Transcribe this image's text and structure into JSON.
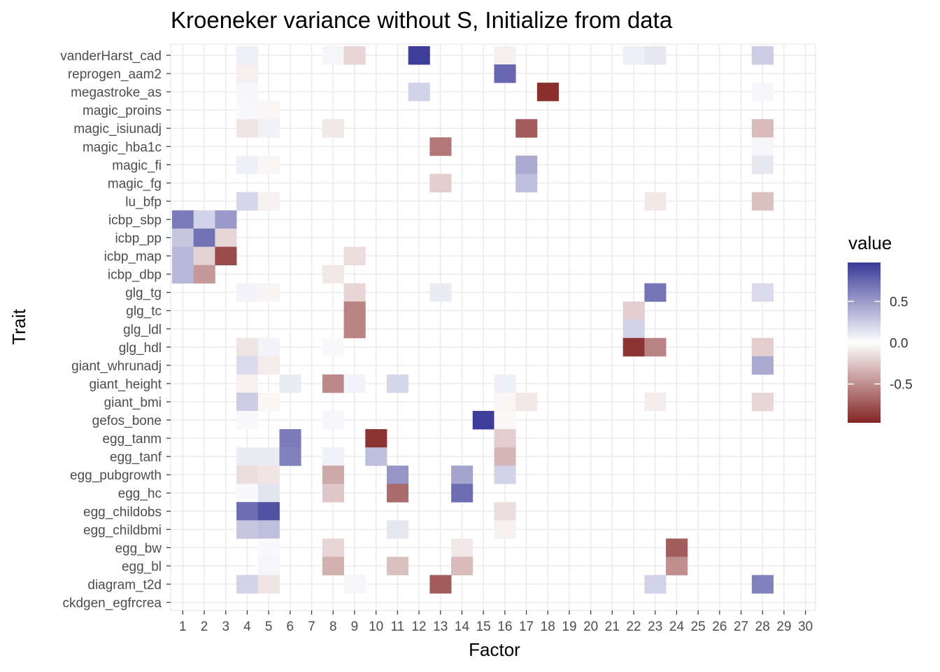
{
  "chart_data": {
    "type": "heatmap",
    "title": "Kroeneker variance without S, Initialize from data",
    "xlabel": "Factor",
    "ylabel": "Trait",
    "x_categories": [
      "1",
      "2",
      "3",
      "4",
      "5",
      "6",
      "7",
      "8",
      "9",
      "10",
      "11",
      "12",
      "13",
      "14",
      "15",
      "16",
      "17",
      "18",
      "19",
      "20",
      "21",
      "22",
      "23",
      "24",
      "25",
      "26",
      "27",
      "28",
      "29",
      "30"
    ],
    "y_categories": [
      "vanderHarst_cad",
      "reprogen_aam2",
      "megastroke_as",
      "magic_proins",
      "magic_isiunadj",
      "magic_hba1c",
      "magic_fi",
      "magic_fg",
      "lu_bfp",
      "icbp_sbp",
      "icbp_pp",
      "icbp_map",
      "icbp_dbp",
      "glg_tg",
      "glg_tc",
      "glg_ldl",
      "glg_hdl",
      "giant_whrunadj",
      "giant_height",
      "giant_bmi",
      "gefos_bone",
      "egg_tanm",
      "egg_tanf",
      "egg_pubgrowth",
      "egg_hc",
      "egg_childobs",
      "egg_childbmi",
      "egg_bw",
      "egg_bl",
      "diagram_t2d",
      "ckdgen_egfrcrea"
    ],
    "cells": [
      {
        "trait": "vanderHarst_cad",
        "factor": 4,
        "value": 0.08
      },
      {
        "trait": "vanderHarst_cad",
        "factor": 8,
        "value": 0.05
      },
      {
        "trait": "vanderHarst_cad",
        "factor": 9,
        "value": -0.18
      },
      {
        "trait": "vanderHarst_cad",
        "factor": 12,
        "value": 0.95
      },
      {
        "trait": "vanderHarst_cad",
        "factor": 16,
        "value": -0.07
      },
      {
        "trait": "vanderHarst_cad",
        "factor": 22,
        "value": 0.08
      },
      {
        "trait": "vanderHarst_cad",
        "factor": 23,
        "value": 0.12
      },
      {
        "trait": "vanderHarst_cad",
        "factor": 28,
        "value": 0.25
      },
      {
        "trait": "reprogen_aam2",
        "factor": 4,
        "value": -0.07
      },
      {
        "trait": "reprogen_aam2",
        "factor": 16,
        "value": 0.75
      },
      {
        "trait": "megastroke_as",
        "factor": 4,
        "value": 0.04
      },
      {
        "trait": "megastroke_as",
        "factor": 12,
        "value": 0.22
      },
      {
        "trait": "megastroke_as",
        "factor": 18,
        "value": -0.92
      },
      {
        "trait": "megastroke_as",
        "factor": 28,
        "value": 0.04
      },
      {
        "trait": "magic_proins",
        "factor": 4,
        "value": 0.03
      },
      {
        "trait": "magic_proins",
        "factor": 5,
        "value": -0.04
      },
      {
        "trait": "magic_isiunadj",
        "factor": 4,
        "value": -0.12
      },
      {
        "trait": "magic_isiunadj",
        "factor": 5,
        "value": 0.07
      },
      {
        "trait": "magic_isiunadj",
        "factor": 8,
        "value": -0.1
      },
      {
        "trait": "magic_isiunadj",
        "factor": 17,
        "value": -0.72
      },
      {
        "trait": "magic_isiunadj",
        "factor": 28,
        "value": -0.3
      },
      {
        "trait": "magic_hba1c",
        "factor": 13,
        "value": -0.6
      },
      {
        "trait": "magic_hba1c",
        "factor": 28,
        "value": 0.05
      },
      {
        "trait": "magic_fi",
        "factor": 4,
        "value": 0.08
      },
      {
        "trait": "magic_fi",
        "factor": 5,
        "value": -0.04
      },
      {
        "trait": "magic_fi",
        "factor": 17,
        "value": 0.42
      },
      {
        "trait": "magic_fi",
        "factor": 28,
        "value": 0.12
      },
      {
        "trait": "magic_fg",
        "factor": 13,
        "value": -0.22
      },
      {
        "trait": "magic_fg",
        "factor": 17,
        "value": 0.32
      },
      {
        "trait": "lu_bfp",
        "factor": 4,
        "value": 0.2
      },
      {
        "trait": "lu_bfp",
        "factor": 5,
        "value": -0.06
      },
      {
        "trait": "lu_bfp",
        "factor": 23,
        "value": -0.1
      },
      {
        "trait": "lu_bfp",
        "factor": 28,
        "value": -0.28
      },
      {
        "trait": "icbp_sbp",
        "factor": 1,
        "value": 0.65
      },
      {
        "trait": "icbp_sbp",
        "factor": 2,
        "value": 0.22
      },
      {
        "trait": "icbp_sbp",
        "factor": 3,
        "value": 0.5
      },
      {
        "trait": "icbp_pp",
        "factor": 1,
        "value": 0.28
      },
      {
        "trait": "icbp_pp",
        "factor": 2,
        "value": 0.7
      },
      {
        "trait": "icbp_pp",
        "factor": 3,
        "value": -0.18
      },
      {
        "trait": "icbp_map",
        "factor": 1,
        "value": 0.35
      },
      {
        "trait": "icbp_map",
        "factor": 2,
        "value": -0.2
      },
      {
        "trait": "icbp_map",
        "factor": 3,
        "value": -0.8
      },
      {
        "trait": "icbp_map",
        "factor": 9,
        "value": -0.15
      },
      {
        "trait": "icbp_dbp",
        "factor": 1,
        "value": 0.35
      },
      {
        "trait": "icbp_dbp",
        "factor": 2,
        "value": -0.45
      },
      {
        "trait": "icbp_dbp",
        "factor": 8,
        "value": -0.1
      },
      {
        "trait": "glg_tg",
        "factor": 4,
        "value": 0.06
      },
      {
        "trait": "glg_tg",
        "factor": 5,
        "value": -0.05
      },
      {
        "trait": "glg_tg",
        "factor": 9,
        "value": -0.18
      },
      {
        "trait": "glg_tg",
        "factor": 13,
        "value": 0.1
      },
      {
        "trait": "glg_tg",
        "factor": 23,
        "value": 0.68
      },
      {
        "trait": "glg_tg",
        "factor": 28,
        "value": 0.18
      },
      {
        "trait": "glg_tc",
        "factor": 9,
        "value": -0.55
      },
      {
        "trait": "glg_tc",
        "factor": 22,
        "value": -0.22
      },
      {
        "trait": "glg_ldl",
        "factor": 9,
        "value": -0.55
      },
      {
        "trait": "glg_ldl",
        "factor": 22,
        "value": 0.22
      },
      {
        "trait": "glg_hdl",
        "factor": 4,
        "value": -0.12
      },
      {
        "trait": "glg_hdl",
        "factor": 5,
        "value": 0.06
      },
      {
        "trait": "glg_hdl",
        "factor": 8,
        "value": 0.03
      },
      {
        "trait": "glg_hdl",
        "factor": 22,
        "value": -0.9
      },
      {
        "trait": "glg_hdl",
        "factor": 23,
        "value": -0.55
      },
      {
        "trait": "glg_hdl",
        "factor": 28,
        "value": -0.22
      },
      {
        "trait": "giant_whrunadj",
        "factor": 4,
        "value": 0.18
      },
      {
        "trait": "giant_whrunadj",
        "factor": 5,
        "value": -0.08
      },
      {
        "trait": "giant_whrunadj",
        "factor": 28,
        "value": 0.42
      },
      {
        "trait": "giant_height",
        "factor": 4,
        "value": -0.06
      },
      {
        "trait": "giant_height",
        "factor": 6,
        "value": 0.1
      },
      {
        "trait": "giant_height",
        "factor": 8,
        "value": -0.52
      },
      {
        "trait": "giant_height",
        "factor": 9,
        "value": 0.06
      },
      {
        "trait": "giant_height",
        "factor": 11,
        "value": 0.2
      },
      {
        "trait": "giant_height",
        "factor": 16,
        "value": 0.08
      },
      {
        "trait": "giant_bmi",
        "factor": 4,
        "value": 0.25
      },
      {
        "trait": "giant_bmi",
        "factor": 5,
        "value": -0.04
      },
      {
        "trait": "giant_bmi",
        "factor": 16,
        "value": -0.04
      },
      {
        "trait": "giant_bmi",
        "factor": 17,
        "value": -0.1
      },
      {
        "trait": "giant_bmi",
        "factor": 23,
        "value": -0.08
      },
      {
        "trait": "giant_bmi",
        "factor": 28,
        "value": -0.18
      },
      {
        "trait": "gefos_bone",
        "factor": 4,
        "value": 0.03
      },
      {
        "trait": "gefos_bone",
        "factor": 8,
        "value": 0.04
      },
      {
        "trait": "gefos_bone",
        "factor": 15,
        "value": 0.95
      },
      {
        "trait": "gefos_bone",
        "factor": 16,
        "value": -0.03
      },
      {
        "trait": "egg_tanm",
        "factor": 6,
        "value": 0.65
      },
      {
        "trait": "egg_tanm",
        "factor": 10,
        "value": -0.9
      },
      {
        "trait": "egg_tanm",
        "factor": 16,
        "value": -0.22
      },
      {
        "trait": "egg_tanf",
        "factor": 4,
        "value": 0.1
      },
      {
        "trait": "egg_tanf",
        "factor": 5,
        "value": 0.1
      },
      {
        "trait": "egg_tanf",
        "factor": 6,
        "value": 0.62
      },
      {
        "trait": "egg_tanf",
        "factor": 8,
        "value": 0.07
      },
      {
        "trait": "egg_tanf",
        "factor": 10,
        "value": 0.32
      },
      {
        "trait": "egg_tanf",
        "factor": 16,
        "value": -0.32
      },
      {
        "trait": "egg_pubgrowth",
        "factor": 4,
        "value": -0.15
      },
      {
        "trait": "egg_pubgrowth",
        "factor": 5,
        "value": -0.12
      },
      {
        "trait": "egg_pubgrowth",
        "factor": 8,
        "value": -0.38
      },
      {
        "trait": "egg_pubgrowth",
        "factor": 11,
        "value": 0.52
      },
      {
        "trait": "egg_pubgrowth",
        "factor": 14,
        "value": 0.45
      },
      {
        "trait": "egg_pubgrowth",
        "factor": 16,
        "value": 0.22
      },
      {
        "trait": "egg_hc",
        "factor": 4,
        "value": 0.03
      },
      {
        "trait": "egg_hc",
        "factor": 5,
        "value": 0.14
      },
      {
        "trait": "egg_hc",
        "factor": 8,
        "value": -0.25
      },
      {
        "trait": "egg_hc",
        "factor": 11,
        "value": -0.65
      },
      {
        "trait": "egg_hc",
        "factor": 14,
        "value": 0.72
      },
      {
        "trait": "egg_childobs",
        "factor": 4,
        "value": 0.72
      },
      {
        "trait": "egg_childobs",
        "factor": 5,
        "value": 0.85
      },
      {
        "trait": "egg_childobs",
        "factor": 16,
        "value": -0.15
      },
      {
        "trait": "egg_childbmi",
        "factor": 4,
        "value": 0.28
      },
      {
        "trait": "egg_childbmi",
        "factor": 5,
        "value": 0.32
      },
      {
        "trait": "egg_childbmi",
        "factor": 11,
        "value": 0.12
      },
      {
        "trait": "egg_childbmi",
        "factor": 16,
        "value": -0.06
      },
      {
        "trait": "egg_bw",
        "factor": 5,
        "value": 0.03
      },
      {
        "trait": "egg_bw",
        "factor": 8,
        "value": -0.18
      },
      {
        "trait": "egg_bw",
        "factor": 14,
        "value": -0.1
      },
      {
        "trait": "egg_bw",
        "factor": 24,
        "value": -0.72
      },
      {
        "trait": "egg_bl",
        "factor": 5,
        "value": 0.05
      },
      {
        "trait": "egg_bl",
        "factor": 8,
        "value": -0.35
      },
      {
        "trait": "egg_bl",
        "factor": 11,
        "value": -0.28
      },
      {
        "trait": "egg_bl",
        "factor": 14,
        "value": -0.3
      },
      {
        "trait": "egg_bl",
        "factor": 24,
        "value": -0.5
      },
      {
        "trait": "diagram_t2d",
        "factor": 4,
        "value": 0.22
      },
      {
        "trait": "diagram_t2d",
        "factor": 5,
        "value": -0.12
      },
      {
        "trait": "diagram_t2d",
        "factor": 9,
        "value": 0.05
      },
      {
        "trait": "diagram_t2d",
        "factor": 13,
        "value": -0.72
      },
      {
        "trait": "diagram_t2d",
        "factor": 23,
        "value": 0.22
      },
      {
        "trait": "diagram_t2d",
        "factor": 28,
        "value": 0.62
      }
    ],
    "color_scale": {
      "low": "#832424",
      "mid": "#FFFFFF",
      "high": "#3A3A98",
      "limits": [
        -0.97,
        0.97
      ]
    },
    "legend": {
      "title": "value",
      "breaks": [
        0.5,
        0.0,
        -0.5
      ],
      "labels": [
        "0.5",
        "0.0",
        "-0.5"
      ],
      "position": "right"
    },
    "grid": true,
    "background": "#FFFFFF",
    "grid_color": "#EBEBEB"
  }
}
